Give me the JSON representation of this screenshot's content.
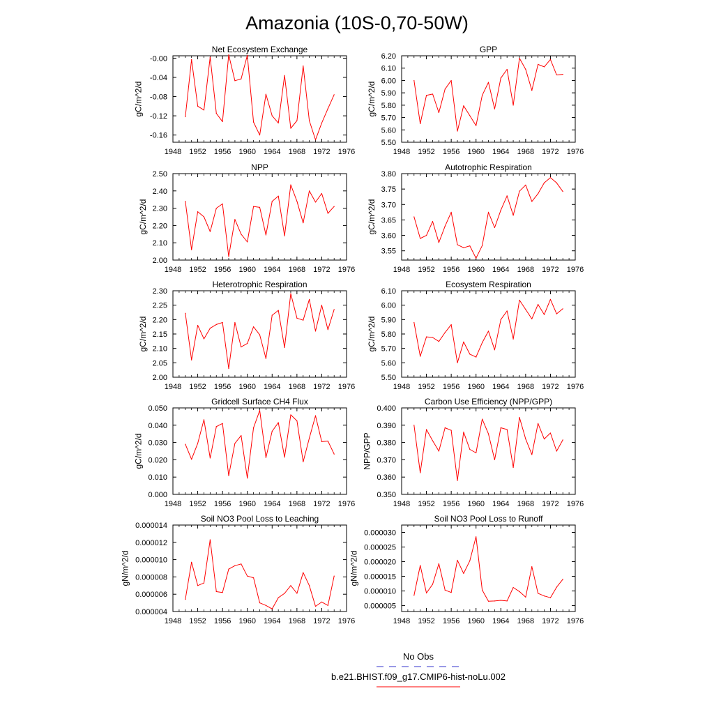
{
  "figure": {
    "title": "Amazonia (10S-0,70-50W)",
    "legend": {
      "obs_label": "No Obs",
      "obs_color": "#3333cc",
      "model_label": "b.e21.BHIST.f09_g17.CMIP6-hist-noLu.002",
      "model_color": "#ff0000"
    },
    "line_color": "#ff0000"
  },
  "chart_data": [
    {
      "type": "line",
      "title": "Net Ecosystem Exchange",
      "ylabel": "gC/m^2/d",
      "xlabel": "",
      "xlim": [
        1948,
        1976
      ],
      "xticks": [
        "1948",
        "1952",
        "1956",
        "1960",
        "1964",
        "1968",
        "1972",
        "1976"
      ],
      "ylim": [
        -0.175,
        0.005
      ],
      "yticks": [
        "-0.00",
        "-0.04",
        "-0.08",
        "-0.12",
        "-0.16"
      ],
      "ytick_values": [
        0.0,
        -0.04,
        -0.08,
        -0.12,
        -0.16
      ],
      "x": [
        1950,
        1951,
        1952,
        1953,
        1954,
        1955,
        1956,
        1957,
        1958,
        1959,
        1960,
        1961,
        1962,
        1963,
        1964,
        1965,
        1966,
        1967,
        1968,
        1969,
        1970,
        1971,
        1972,
        1973,
        1974
      ],
      "values": [
        -0.122,
        -0.003,
        -0.1,
        -0.108,
        0.002,
        -0.115,
        -0.132,
        0.007,
        -0.047,
        -0.043,
        0.006,
        -0.133,
        -0.16,
        -0.075,
        -0.12,
        -0.135,
        -0.036,
        -0.146,
        -0.13,
        -0.016,
        -0.13,
        -0.17,
        -0.135,
        -0.105,
        -0.076
      ]
    },
    {
      "type": "line",
      "title": "GPP",
      "ylabel": "gC/m^2/d",
      "xlabel": "",
      "xlim": [
        1948,
        1976
      ],
      "xticks": [
        "1948",
        "1952",
        "1956",
        "1960",
        "1964",
        "1968",
        "1972",
        "1976"
      ],
      "ylim": [
        5.5,
        6.2
      ],
      "yticks": [
        "5.50",
        "5.60",
        "5.70",
        "5.80",
        "5.90",
        "6.00",
        "6.10",
        "6.20"
      ],
      "ytick_values": [
        5.5,
        5.6,
        5.7,
        5.8,
        5.9,
        6.0,
        6.1,
        6.2
      ],
      "x": [
        1950,
        1951,
        1952,
        1953,
        1954,
        1955,
        1956,
        1957,
        1958,
        1959,
        1960,
        1961,
        1962,
        1963,
        1964,
        1965,
        1966,
        1967,
        1968,
        1969,
        1970,
        1971,
        1972,
        1973,
        1974
      ],
      "values": [
        6.0,
        5.65,
        5.88,
        5.89,
        5.74,
        5.93,
        6.0,
        5.59,
        5.795,
        5.715,
        5.635,
        5.88,
        5.985,
        5.77,
        6.02,
        6.09,
        5.8,
        6.18,
        6.09,
        5.92,
        6.13,
        6.11,
        6.17,
        6.045,
        6.05
      ]
    },
    {
      "type": "line",
      "title": "NPP",
      "ylabel": "gC/m^2/d",
      "xlabel": "",
      "xlim": [
        1948,
        1976
      ],
      "xticks": [
        "1948",
        "1952",
        "1956",
        "1960",
        "1964",
        "1968",
        "1972",
        "1976"
      ],
      "ylim": [
        2.0,
        2.5
      ],
      "yticks": [
        "2.00",
        "2.10",
        "2.20",
        "2.30",
        "2.40",
        "2.50"
      ],
      "ytick_values": [
        2.0,
        2.1,
        2.2,
        2.3,
        2.4,
        2.5
      ],
      "x": [
        1950,
        1951,
        1952,
        1953,
        1954,
        1955,
        1956,
        1957,
        1958,
        1959,
        1960,
        1961,
        1962,
        1963,
        1964,
        1965,
        1966,
        1967,
        1968,
        1969,
        1970,
        1971,
        1972,
        1973,
        1974
      ],
      "values": [
        2.34,
        2.06,
        2.28,
        2.25,
        2.165,
        2.3,
        2.325,
        2.02,
        2.235,
        2.15,
        2.105,
        2.31,
        2.305,
        2.145,
        2.34,
        2.37,
        2.14,
        2.435,
        2.34,
        2.215,
        2.4,
        2.335,
        2.385,
        2.27,
        2.31
      ]
    },
    {
      "type": "line",
      "title": "Autotrophic Respiration",
      "ylabel": "gC/m^2/d",
      "xlabel": "",
      "xlim": [
        1948,
        1976
      ],
      "xticks": [
        "1948",
        "1952",
        "1956",
        "1960",
        "1964",
        "1968",
        "1972",
        "1976"
      ],
      "ylim": [
        3.52,
        3.8
      ],
      "yticks": [
        "3.55",
        "3.60",
        "3.65",
        "3.70",
        "3.75",
        "3.80"
      ],
      "ytick_values": [
        3.55,
        3.6,
        3.65,
        3.7,
        3.75,
        3.8
      ],
      "x": [
        1950,
        1951,
        1952,
        1953,
        1954,
        1955,
        1956,
        1957,
        1958,
        1959,
        1960,
        1961,
        1962,
        1963,
        1964,
        1965,
        1966,
        1967,
        1968,
        1969,
        1970,
        1971,
        1972,
        1973,
        1974
      ],
      "values": [
        3.66,
        3.59,
        3.6,
        3.645,
        3.577,
        3.63,
        3.675,
        3.57,
        3.56,
        3.566,
        3.526,
        3.567,
        3.675,
        3.625,
        3.682,
        3.728,
        3.665,
        3.743,
        3.763,
        3.71,
        3.735,
        3.77,
        3.787,
        3.77,
        3.742
      ]
    },
    {
      "type": "line",
      "title": "Heterotrophic Respiration",
      "ylabel": "gC/m^2/d",
      "xlabel": "",
      "xlim": [
        1948,
        1976
      ],
      "xticks": [
        "1948",
        "1952",
        "1956",
        "1960",
        "1964",
        "1968",
        "1972",
        "1976"
      ],
      "ylim": [
        2.0,
        2.3
      ],
      "yticks": [
        "2.00",
        "2.05",
        "2.10",
        "2.15",
        "2.20",
        "2.25",
        "2.30"
      ],
      "ytick_values": [
        2.0,
        2.05,
        2.1,
        2.15,
        2.2,
        2.25,
        2.3
      ],
      "x": [
        1950,
        1951,
        1952,
        1953,
        1954,
        1955,
        1956,
        1957,
        1958,
        1959,
        1960,
        1961,
        1962,
        1963,
        1964,
        1965,
        1966,
        1967,
        1968,
        1969,
        1970,
        1971,
        1972,
        1973,
        1974
      ],
      "values": [
        2.222,
        2.06,
        2.18,
        2.133,
        2.17,
        2.183,
        2.19,
        2.03,
        2.19,
        2.105,
        2.117,
        2.175,
        2.147,
        2.065,
        2.215,
        2.232,
        2.103,
        2.29,
        2.205,
        2.198,
        2.27,
        2.16,
        2.25,
        2.165,
        2.235
      ]
    },
    {
      "type": "line",
      "title": "Ecosystem Respiration",
      "ylabel": "gC/m^2/d",
      "xlabel": "",
      "xlim": [
        1948,
        1976
      ],
      "xticks": [
        "1948",
        "1952",
        "1956",
        "1960",
        "1964",
        "1968",
        "1972",
        "1976"
      ],
      "ylim": [
        5.5,
        6.1
      ],
      "yticks": [
        "5.50",
        "5.60",
        "5.70",
        "5.80",
        "5.90",
        "6.00",
        "6.10"
      ],
      "ytick_values": [
        5.5,
        5.6,
        5.7,
        5.8,
        5.9,
        6.0,
        6.1
      ],
      "x": [
        1950,
        1951,
        1952,
        1953,
        1954,
        1955,
        1956,
        1957,
        1958,
        1959,
        1960,
        1961,
        1962,
        1963,
        1964,
        1965,
        1966,
        1967,
        1968,
        1969,
        1970,
        1971,
        1972,
        1973,
        1974
      ],
      "values": [
        5.88,
        5.645,
        5.78,
        5.776,
        5.748,
        5.81,
        5.865,
        5.6,
        5.745,
        5.66,
        5.64,
        5.74,
        5.82,
        5.69,
        5.9,
        5.96,
        5.765,
        6.035,
        5.97,
        5.905,
        6.005,
        5.935,
        6.04,
        5.94,
        5.975
      ]
    },
    {
      "type": "line",
      "title": "Gridcell Surface CH4 Flux",
      "ylabel": "gC/m^2/d",
      "xlabel": "",
      "xlim": [
        1948,
        1976
      ],
      "xticks": [
        "1948",
        "1952",
        "1956",
        "1960",
        "1964",
        "1968",
        "1972",
        "1976"
      ],
      "ylim": [
        0.0,
        0.05
      ],
      "yticks": [
        "0.000",
        "0.010",
        "0.020",
        "0.030",
        "0.040",
        "0.050"
      ],
      "ytick_values": [
        0.0,
        0.01,
        0.02,
        0.03,
        0.04,
        0.05
      ],
      "x": [
        1950,
        1951,
        1952,
        1953,
        1954,
        1955,
        1956,
        1957,
        1958,
        1959,
        1960,
        1961,
        1962,
        1963,
        1964,
        1965,
        1966,
        1967,
        1968,
        1969,
        1970,
        1971,
        1972,
        1973,
        1974
      ],
      "values": [
        0.029,
        0.0203,
        0.0295,
        0.0432,
        0.021,
        0.0392,
        0.041,
        0.0108,
        0.0295,
        0.034,
        0.0094,
        0.0385,
        0.0485,
        0.0213,
        0.0365,
        0.0415,
        0.0215,
        0.046,
        0.0425,
        0.0188,
        0.0325,
        0.0455,
        0.0305,
        0.0308,
        0.0233
      ]
    },
    {
      "type": "line",
      "title": "Carbon Use Efficiency (NPP/GPP)",
      "ylabel": "NPP/GPP",
      "xlabel": "",
      "xlim": [
        1948,
        1976
      ],
      "xticks": [
        "1948",
        "1952",
        "1956",
        "1960",
        "1964",
        "1968",
        "1972",
        "1976"
      ],
      "ylim": [
        0.35,
        0.4
      ],
      "yticks": [
        "0.350",
        "0.360",
        "0.370",
        "0.380",
        "0.390",
        "0.400"
      ],
      "ytick_values": [
        0.35,
        0.36,
        0.37,
        0.38,
        0.39,
        0.4
      ],
      "x": [
        1950,
        1951,
        1952,
        1953,
        1954,
        1955,
        1956,
        1957,
        1958,
        1959,
        1960,
        1961,
        1962,
        1963,
        1964,
        1965,
        1966,
        1967,
        1968,
        1969,
        1970,
        1971,
        1972,
        1973,
        1974
      ],
      "values": [
        0.39,
        0.3625,
        0.3875,
        0.381,
        0.375,
        0.3885,
        0.387,
        0.358,
        0.386,
        0.376,
        0.374,
        0.3935,
        0.385,
        0.37,
        0.3885,
        0.3875,
        0.3655,
        0.3945,
        0.382,
        0.373,
        0.391,
        0.382,
        0.3855,
        0.375,
        0.3815
      ]
    },
    {
      "type": "line",
      "title": "Soil NO3 Pool Loss to Leaching",
      "ylabel": "gN/m^2/d",
      "xlabel": "",
      "xlim": [
        1948,
        1976
      ],
      "xticks": [
        "1948",
        "1952",
        "1956",
        "1960",
        "1964",
        "1968",
        "1972",
        "1976"
      ],
      "ylim": [
        4e-06,
        1.4e-05
      ],
      "yticks": [
        "0.000004",
        "0.000006",
        "0.000008",
        "0.000010",
        "0.000012",
        "0.000014"
      ],
      "ytick_values": [
        4e-06,
        6e-06,
        8e-06,
        1e-05,
        1.2e-05,
        1.4e-05
      ],
      "x": [
        1950,
        1951,
        1952,
        1953,
        1954,
        1955,
        1956,
        1957,
        1958,
        1959,
        1960,
        1961,
        1962,
        1963,
        1964,
        1965,
        1966,
        1967,
        1968,
        1969,
        1970,
        1971,
        1972,
        1973,
        1974
      ],
      "values": [
        5.4e-06,
        9.7e-06,
        7e-06,
        7.3e-06,
        1.23e-05,
        6.3e-06,
        6.2e-06,
        8.9e-06,
        9.3e-06,
        9.5e-06,
        8.1e-06,
        7.9e-06,
        5e-06,
        4.7e-06,
        4.3e-06,
        5.6e-06,
        6.1e-06,
        7e-06,
        6.1e-06,
        8.5e-06,
        7e-06,
        4.6e-06,
        5.1e-06,
        4.7e-06,
        8.1e-06
      ]
    },
    {
      "type": "line",
      "title": "Soil NO3 Pool Loss to Runoff",
      "ylabel": "gN/m^2/d",
      "xlabel": "",
      "xlim": [
        1948,
        1976
      ],
      "xticks": [
        "1948",
        "1952",
        "1956",
        "1960",
        "1964",
        "1968",
        "1972",
        "1976"
      ],
      "ylim": [
        3e-06,
        3.25e-05
      ],
      "yticks": [
        "0.000005",
        "0.000010",
        "0.000015",
        "0.000020",
        "0.000025",
        "0.000030"
      ],
      "ytick_values": [
        5e-06,
        1e-05,
        1.5e-05,
        2e-05,
        2.5e-05,
        3e-05
      ],
      "x": [
        1950,
        1951,
        1952,
        1953,
        1954,
        1955,
        1956,
        1957,
        1958,
        1959,
        1960,
        1961,
        1962,
        1963,
        1964,
        1965,
        1966,
        1967,
        1968,
        1969,
        1970,
        1971,
        1972,
        1973,
        1974
      ],
      "values": [
        8.5e-06,
        1.87e-05,
        9.3e-06,
        1.23e-05,
        1.93e-05,
        1.03e-05,
        9.5e-06,
        2.05e-05,
        1.6e-05,
        2.03e-05,
        2.85e-05,
        1.03e-05,
        6.5e-06,
        6.6e-06,
        6.8e-06,
        6.6e-06,
        1.12e-05,
        9.8e-06,
        7.9e-06,
        1.83e-05,
        9.2e-06,
        8.3e-06,
        7.7e-06,
        1.13e-05,
        1.4e-05
      ]
    }
  ]
}
